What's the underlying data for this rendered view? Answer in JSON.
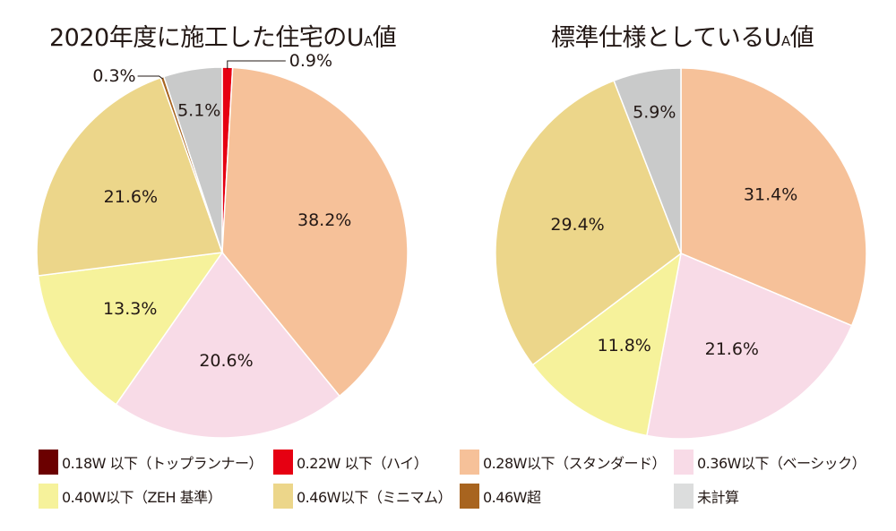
{
  "chart_data": [
    {
      "type": "pie",
      "title": "2020年度に施工した住宅のUA値",
      "slices": [
        {
          "category": "0.22W以下(ハイ)",
          "value": 0.9,
          "label": "0.9%",
          "color": "#e60012"
        },
        {
          "category": "0.28W以下(スタンダード)",
          "value": 38.2,
          "label": "38.2%",
          "color": "#f6c199"
        },
        {
          "category": "0.36W以下(ベーシック)",
          "value": 20.6,
          "label": "20.6%",
          "color": "#f8dbe7"
        },
        {
          "category": "0.40W以下(ZEH基準)",
          "value": 13.3,
          "label": "13.3%",
          "color": "#f6f29b"
        },
        {
          "category": "0.46W以下(ミニマム)",
          "value": 21.6,
          "label": "21.6%",
          "color": "#ecd68a"
        },
        {
          "category": "0.46W超",
          "value": 0.3,
          "label": "0.3%",
          "color": "#a8641f"
        },
        {
          "category": "未計算",
          "value": 5.1,
          "label": "5.1%",
          "color": "#c9caca"
        }
      ]
    },
    {
      "type": "pie",
      "title": "標準仕様としているUA値",
      "slices": [
        {
          "category": "0.28W以下(スタンダード)",
          "value": 31.4,
          "label": "31.4%",
          "color": "#f6c199"
        },
        {
          "category": "0.36W以下(ベーシック)",
          "value": 21.6,
          "label": "21.6%",
          "color": "#f8dbe7"
        },
        {
          "category": "0.40W以下(ZEH基準)",
          "value": 11.8,
          "label": "11.8%",
          "color": "#f6f29b"
        },
        {
          "category": "0.46W以下(ミニマム)",
          "value": 29.4,
          "label": "29.4%",
          "color": "#ecd68a"
        },
        {
          "category": "未計算",
          "value": 5.9,
          "label": "5.9%",
          "color": "#c9caca"
        }
      ]
    }
  ],
  "titles": {
    "left_main": "2020年度に施工した住宅のU",
    "left_sub": "A",
    "left_end": "値",
    "right_main": "標準仕様としているU",
    "right_sub": "A",
    "right_end": "値"
  },
  "legend": [
    {
      "label": "0.18W 以下（トップランナー）",
      "color": "#6b0000"
    },
    {
      "label": "0.22W 以下（ハイ）",
      "color": "#e60012"
    },
    {
      "label": "0.28W以下（スタンダード）",
      "color": "#f6c199"
    },
    {
      "label": "0.36W以下（ベーシック）",
      "color": "#f8dbe7"
    },
    {
      "label": "0.40W以下（ZEH 基準）",
      "color": "#f6f29b"
    },
    {
      "label": "0.46W以下（ミニマム）",
      "color": "#ecd68a"
    },
    {
      "label": "0.46W超",
      "color": "#a8641f"
    },
    {
      "label": "未計算",
      "color": "#dcdddd"
    }
  ]
}
